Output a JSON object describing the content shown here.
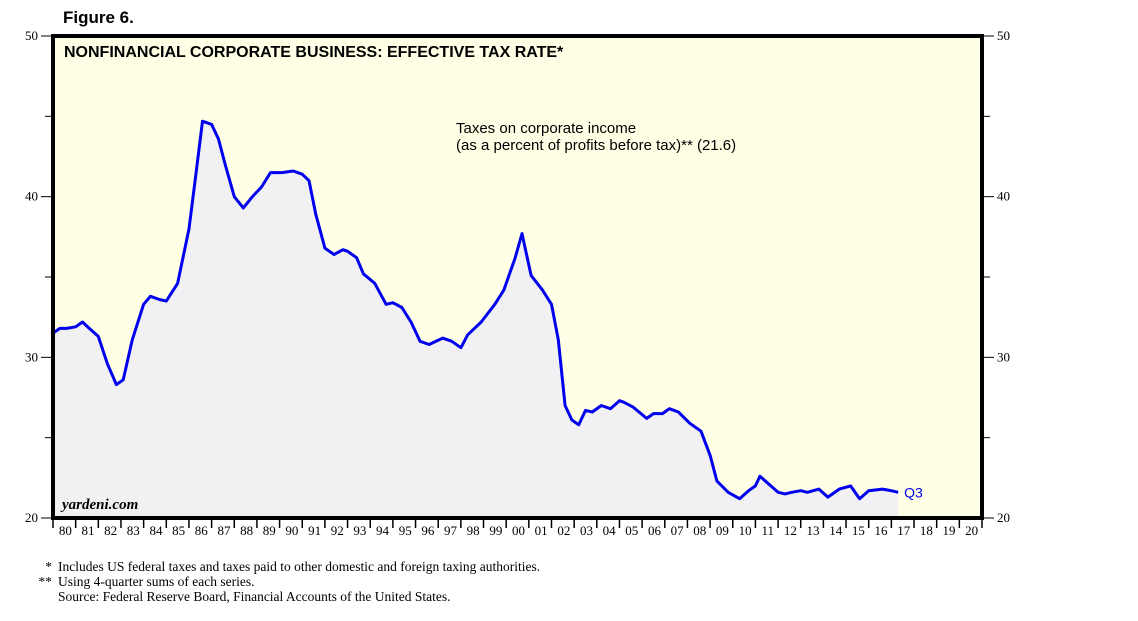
{
  "figure_label": "Figure 6.",
  "chart_data": {
    "type": "area",
    "title": "NONFINANCIAL CORPORATE BUSINESS: EFFECTIVE TAX RATE*",
    "series_label_line1": "Taxes on corporate income",
    "series_label_line2": "(as a percent of profits before tax)** (21.6)",
    "end_label": "Q3",
    "watermark": "yardeni.com",
    "xlabel": "",
    "ylabel": "",
    "xlim": [
      1980,
      2021
    ],
    "ylim": [
      20,
      50
    ],
    "y_ticks_left": [
      "50",
      "40",
      "30",
      "20"
    ],
    "y_ticks_right": [
      "50",
      "40",
      "30",
      "20"
    ],
    "y_tick_values": [
      50,
      40,
      30,
      20
    ],
    "y_minor_tick_values": [
      45,
      35,
      25
    ],
    "x_tick_labels": [
      "80",
      "81",
      "82",
      "83",
      "84",
      "85",
      "86",
      "87",
      "88",
      "89",
      "90",
      "91",
      "92",
      "93",
      "94",
      "95",
      "96",
      "97",
      "98",
      "99",
      "00",
      "01",
      "02",
      "03",
      "04",
      "05",
      "06",
      "07",
      "08",
      "09",
      "10",
      "11",
      "12",
      "13",
      "14",
      "15",
      "16",
      "17",
      "18",
      "19",
      "20"
    ],
    "grid": false,
    "series": [
      {
        "name": "Taxes on corporate income (as a percent of profits before tax)",
        "color": "#0000ee",
        "fill": "#f1f1f3",
        "x": [
          1980.0,
          1980.3,
          1980.6,
          1981.0,
          1981.3,
          1981.6,
          1982.0,
          1982.4,
          1982.8,
          1983.1,
          1983.5,
          1984.0,
          1984.3,
          1984.7,
          1985.0,
          1985.5,
          1986.0,
          1986.3,
          1986.6,
          1987.0,
          1987.3,
          1987.6,
          1988.0,
          1988.4,
          1988.8,
          1989.2,
          1989.6,
          1990.1,
          1990.6,
          1991.0,
          1991.3,
          1991.6,
          1992.0,
          1992.4,
          1992.8,
          1993.0,
          1993.4,
          1993.7,
          1994.2,
          1994.7,
          1995.0,
          1995.4,
          1995.8,
          1996.2,
          1996.6,
          1997.2,
          1997.6,
          1998.0,
          1998.3,
          1998.9,
          1999.5,
          1999.9,
          2000.4,
          2000.7,
          2001.1,
          2001.6,
          2002.0,
          2002.3,
          2002.6,
          2002.9,
          2003.2,
          2003.5,
          2003.8,
          2004.2,
          2004.6,
          2005.0,
          2005.2,
          2005.6,
          2006.2,
          2006.5,
          2006.9,
          2007.2,
          2007.6,
          2008.1,
          2008.6,
          2009.0,
          2009.3,
          2009.8,
          2010.3,
          2010.7,
          2011.0,
          2011.2,
          2011.6,
          2012.0,
          2012.3,
          2012.6,
          2013.0,
          2013.3,
          2013.8,
          2014.2,
          2014.7,
          2015.2,
          2015.6,
          2016.0,
          2016.6,
          2017.0,
          2017.3
        ],
        "values": [
          31.5,
          31.8,
          31.8,
          31.9,
          32.2,
          31.8,
          31.3,
          29.6,
          28.3,
          28.6,
          31.1,
          33.3,
          33.8,
          33.6,
          33.5,
          34.6,
          38.0,
          41.3,
          44.7,
          44.5,
          43.6,
          42.0,
          40.0,
          39.3,
          40.0,
          40.6,
          41.5,
          41.5,
          41.6,
          41.4,
          41.0,
          38.9,
          36.8,
          36.4,
          36.7,
          36.6,
          36.2,
          35.2,
          34.6,
          33.3,
          33.4,
          33.1,
          32.2,
          31.0,
          30.8,
          31.2,
          31.0,
          30.6,
          31.4,
          32.2,
          33.3,
          34.2,
          36.2,
          37.7,
          35.1,
          34.2,
          33.3,
          31.1,
          27.0,
          26.1,
          25.8,
          26.7,
          26.6,
          27.0,
          26.8,
          27.3,
          27.2,
          26.9,
          26.2,
          26.5,
          26.5,
          26.8,
          26.6,
          25.9,
          25.4,
          23.9,
          22.3,
          21.6,
          21.2,
          21.7,
          22.0,
          22.6,
          22.1,
          21.6,
          21.5,
          21.6,
          21.7,
          21.6,
          21.8,
          21.3,
          21.8,
          22.0,
          21.2,
          21.7,
          21.8,
          21.7,
          21.6
        ]
      }
    ]
  },
  "footnotes": [
    {
      "mark": "*",
      "text": "Includes US federal taxes and taxes paid to other domestic and foreign taxing authorities."
    },
    {
      "mark": "**",
      "text": "Using 4-quarter sums of each series."
    },
    {
      "mark": "",
      "text": "Source: Federal Reserve Board, Financial Accounts of the United States."
    }
  ],
  "colors": {
    "plot_background": "#ffffe6",
    "area_fill": "#f1f1f3",
    "line": "#0000ee",
    "frame": "#000000"
  }
}
